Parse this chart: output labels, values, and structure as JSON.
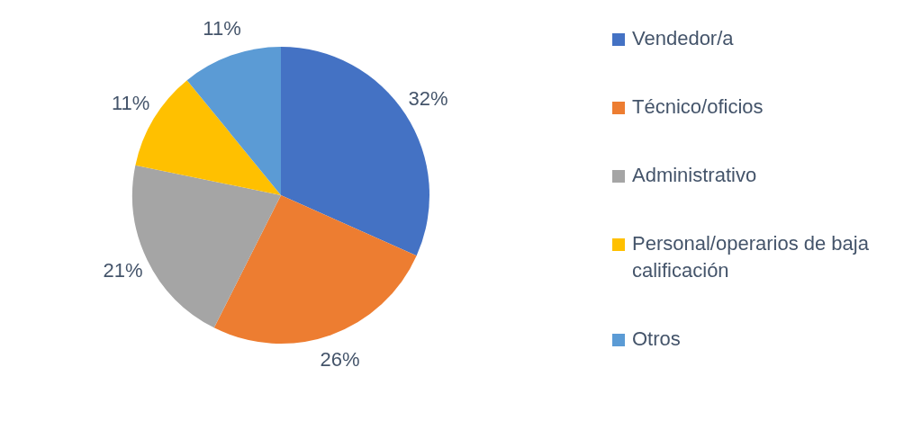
{
  "chart_data": {
    "type": "pie",
    "categories": [
      "Vendedor/a",
      "Técnico/oficios",
      "Administrativo",
      "Personal/operarios de baja calificación",
      "Otros"
    ],
    "values": [
      32,
      26,
      21,
      11,
      11
    ],
    "value_labels": [
      "32%",
      "26%",
      "21%",
      "11%",
      "11%"
    ],
    "colors": [
      "#4472c4",
      "#ed7d31",
      "#a5a5a5",
      "#ffc000",
      "#5b9bd5"
    ],
    "legend": "right"
  }
}
